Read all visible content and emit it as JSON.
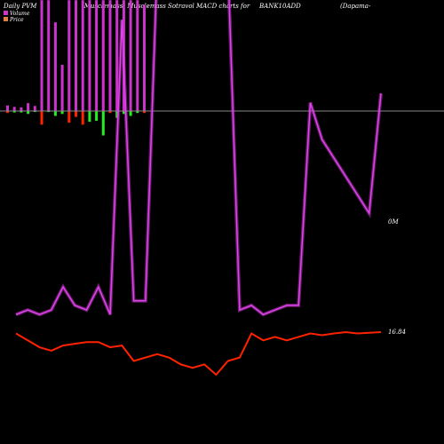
{
  "header": {
    "left": "Daily PVM",
    "center": "(Musclemass) Musclemass Sotravol MACD charts for",
    "symbol": "BANK10ADD",
    "right": "(Dapama-"
  },
  "legend": {
    "items": [
      {
        "label": "Volume",
        "color": "#cc33cc"
      },
      {
        "label": "Price",
        "color": "#e08040"
      }
    ]
  },
  "colors": {
    "background": "#000000",
    "zero_line": "#888888",
    "volume": "#cc33cc",
    "volume_line": "#dd44ee",
    "price_line": "#ff2200",
    "macd_up": "#22ee22",
    "macd_down": "#ff2200"
  },
  "chart_data": {
    "type": "line",
    "grid": false,
    "labels": {
      "volume_last": "0M",
      "price_last": "16.84"
    },
    "series": [
      {
        "name": "Volume",
        "values": [
          0.04,
          0.05,
          0.04,
          0.05,
          0.1,
          0.06,
          0.05,
          0.1,
          0.04,
          0.68,
          0.07,
          0.07,
          0.8,
          0.8,
          0.8,
          0.8,
          0.8,
          0.8,
          0.8,
          0.05,
          0.06,
          0.04,
          0.05,
          0.06,
          0.06,
          0.5,
          0.42,
          0.38,
          0.34,
          0.3,
          0.26,
          0.52
        ]
      },
      {
        "name": "Price",
        "values": [
          16.8,
          16.6,
          16.4,
          16.3,
          16.45,
          16.5,
          16.55,
          16.55,
          16.4,
          16.45,
          16.0,
          16.1,
          16.2,
          16.1,
          15.9,
          15.8,
          15.9,
          15.6,
          16.0,
          16.1,
          16.8,
          16.6,
          16.7,
          16.6,
          16.7,
          16.8,
          16.75,
          16.8,
          16.84,
          16.8,
          16.82,
          16.84
        ]
      }
    ],
    "histogram": {
      "bars": [
        {
          "pos": 0.6,
          "neg": 0.2
        },
        {
          "pos": 0.45,
          "neg": 0.15
        },
        {
          "pos": 0.4,
          "neg": 0.15
        },
        {
          "pos": 0.85,
          "neg": 0.3
        },
        {
          "pos": 0.55,
          "neg": 0.1
        },
        {
          "pos": 12.0,
          "neg": 1.4
        },
        {
          "pos": 12.0,
          "neg": 0.1
        },
        {
          "pos": 9.6,
          "neg": 0.5
        },
        {
          "pos": 5.0,
          "neg": 0.3
        },
        {
          "pos": 12.0,
          "neg": 1.2
        },
        {
          "pos": 12.0,
          "neg": 0.6
        },
        {
          "pos": 12.0,
          "neg": 1.4
        },
        {
          "pos": 12.0,
          "neg": 1.1
        },
        {
          "pos": 12.0,
          "neg": 1.0
        },
        {
          "pos": 12.0,
          "neg": 2.5
        },
        {
          "pos": 12.0,
          "neg": 0.2
        },
        {
          "pos": 12.0,
          "neg": 0.7
        },
        {
          "pos": 12.0,
          "neg": 0.3
        },
        {
          "pos": 12.0,
          "neg": 0.5
        },
        {
          "pos": 12.0,
          "neg": 0.2
        },
        {
          "pos": 11.5,
          "neg": 0.2
        }
      ]
    }
  }
}
